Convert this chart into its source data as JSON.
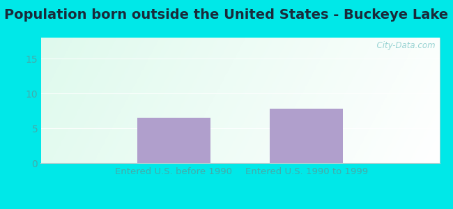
{
  "title": "Population born outside the United States - Buckeye Lake",
  "categories": [
    "Entered U.S. before 1990",
    "Entered U.S. 1990 to 1999"
  ],
  "values": [
    6.5,
    7.8
  ],
  "bar_color": "#b09fcc",
  "background_outer": "#00e8e8",
  "ylim": [
    0,
    18
  ],
  "yticks": [
    0,
    5,
    10,
    15
  ],
  "title_fontsize": 14,
  "tick_fontsize": 10,
  "xlabel_fontsize": 9.5,
  "watermark": "  City-Data.com",
  "title_color": "#1a2a3a",
  "tick_color": "#44aaaa",
  "xlabel_color": "#44aaaa"
}
